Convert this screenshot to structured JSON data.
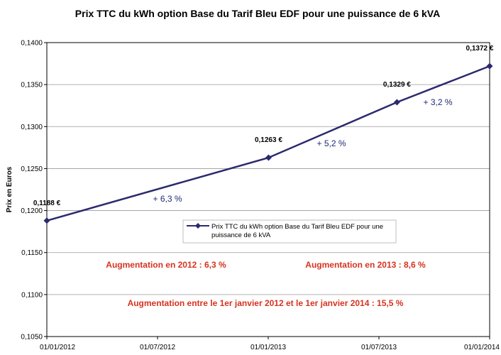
{
  "colors": {
    "line": "#2b2a6e",
    "percent_text": "#1f2a78",
    "note_text": "#d7321f",
    "grid": "#9a9a9a",
    "plot_border": "#000000"
  },
  "chart_data": {
    "type": "line",
    "title": "Prix TTC du kWh option Base du Tarif Bleu EDF pour une puissance de 6 kVA",
    "xlabel": "",
    "ylabel": "Prix en Euros",
    "x_ticks": [
      "01/01/2012",
      "01/07/2012",
      "01/01/2013",
      "01/07/2013",
      "01/01/2014"
    ],
    "x_range": [
      "2012-01-01",
      "2014-01-01"
    ],
    "ylim": [
      0.105,
      0.14
    ],
    "y_ticks": [
      "0,1050",
      "0,1100",
      "0,1150",
      "0,1200",
      "0,1250",
      "0,1300",
      "0,1350",
      "0,1400"
    ],
    "y_tick_values": [
      0.105,
      0.11,
      0.115,
      0.12,
      0.125,
      0.13,
      0.135,
      0.14
    ],
    "grid": "horizontal",
    "legend_position": "center",
    "series": [
      {
        "name": "Prix TTC du kWh option Base du Tarif Bleu EDF pour une puissance de 6 kVA",
        "marker": "diamond",
        "points": [
          {
            "x": "2012-01-01",
            "y": 0.1188,
            "label": "0,1188 €"
          },
          {
            "x": "2013-01-01",
            "y": 0.1263,
            "label": "0,1263 €"
          },
          {
            "x": "2013-08-01",
            "y": 0.1329,
            "label": "0,1329 €"
          },
          {
            "x": "2014-01-01",
            "y": 0.1372,
            "label": "0,1372 €"
          }
        ]
      }
    ],
    "legend_lines": [
      "Prix TTC du kWh option Base du Tarif Bleu EDF pour une",
      "puissance de 6 kVA"
    ],
    "segment_changes": [
      "+ 6,3 %",
      "+ 5,2 %",
      "+ 3,2 %"
    ],
    "annotations": {
      "increase_2012": "Augmentation en 2012 : 6,3 %",
      "increase_2013": "Augmentation en 2013 : 8,6 %",
      "increase_total": "Augmentation entre le 1er janvier 2012 et le 1er janvier 2014 : 15,5 %"
    }
  }
}
